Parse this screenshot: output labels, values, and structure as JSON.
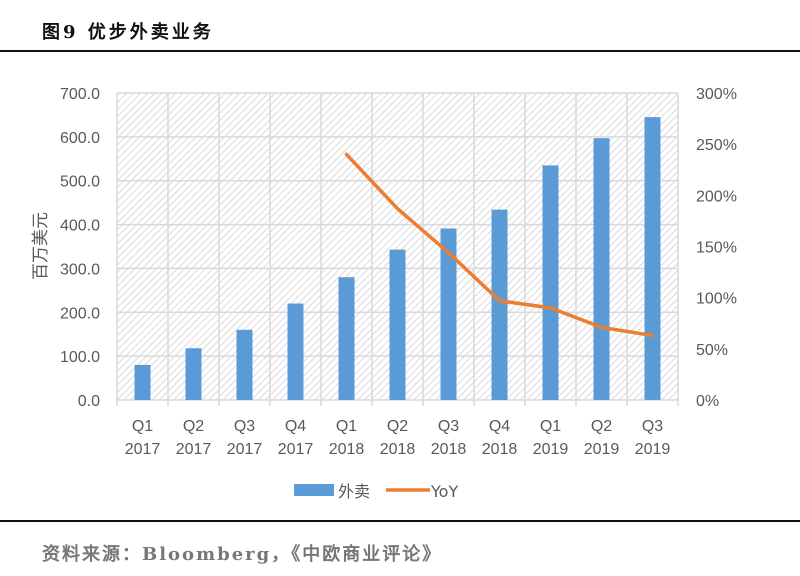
{
  "header": {
    "title": "图9 优步外卖业务"
  },
  "footer": {
    "source": "资料来源：Bloomberg，《中欧商业评论》"
  },
  "colors": {
    "bar": "#5B9BD5",
    "line": "#ED7D31",
    "grid": "#D9D9D9",
    "text": "#595959"
  },
  "chart_data": {
    "type": "bar+line",
    "title": "优步外卖业务",
    "categories": [
      "Q1 2017",
      "Q2 2017",
      "Q3 2017",
      "Q4 2017",
      "Q1 2018",
      "Q2 2018",
      "Q3 2018",
      "Q4 2018",
      "Q1 2019",
      "Q2 2019",
      "Q3 2019"
    ],
    "category_labels": [
      [
        "Q1",
        "2017"
      ],
      [
        "Q2",
        "2017"
      ],
      [
        "Q3",
        "2017"
      ],
      [
        "Q4",
        "2017"
      ],
      [
        "Q1",
        "2018"
      ],
      [
        "Q2",
        "2018"
      ],
      [
        "Q3",
        "2018"
      ],
      [
        "Q4",
        "2018"
      ],
      [
        "Q1",
        "2019"
      ],
      [
        "Q2",
        "2019"
      ],
      [
        "Q3",
        "2019"
      ]
    ],
    "series": [
      {
        "name": "外卖",
        "type": "bar",
        "axis": "left",
        "values": [
          80,
          118,
          160,
          220,
          280,
          343,
          391,
          434,
          535,
          597,
          645
        ]
      },
      {
        "name": "YoY",
        "type": "line",
        "axis": "right",
        "values": [
          null,
          null,
          null,
          null,
          2.4,
          1.87,
          1.44,
          0.97,
          0.9,
          0.71,
          0.63
        ]
      }
    ],
    "ylabel": "百万美元",
    "ylim": [
      0,
      700
    ],
    "yticks": [
      "0.0",
      "100.0",
      "200.0",
      "300.0",
      "400.0",
      "500.0",
      "600.0",
      "700.0"
    ],
    "y2lim": [
      0,
      3
    ],
    "y2ticks": [
      "0%",
      "50%",
      "100%",
      "150%",
      "200%",
      "250%",
      "300%"
    ],
    "grid": true,
    "legend_position": "bottom",
    "legend": [
      "外卖",
      "YoY"
    ]
  }
}
